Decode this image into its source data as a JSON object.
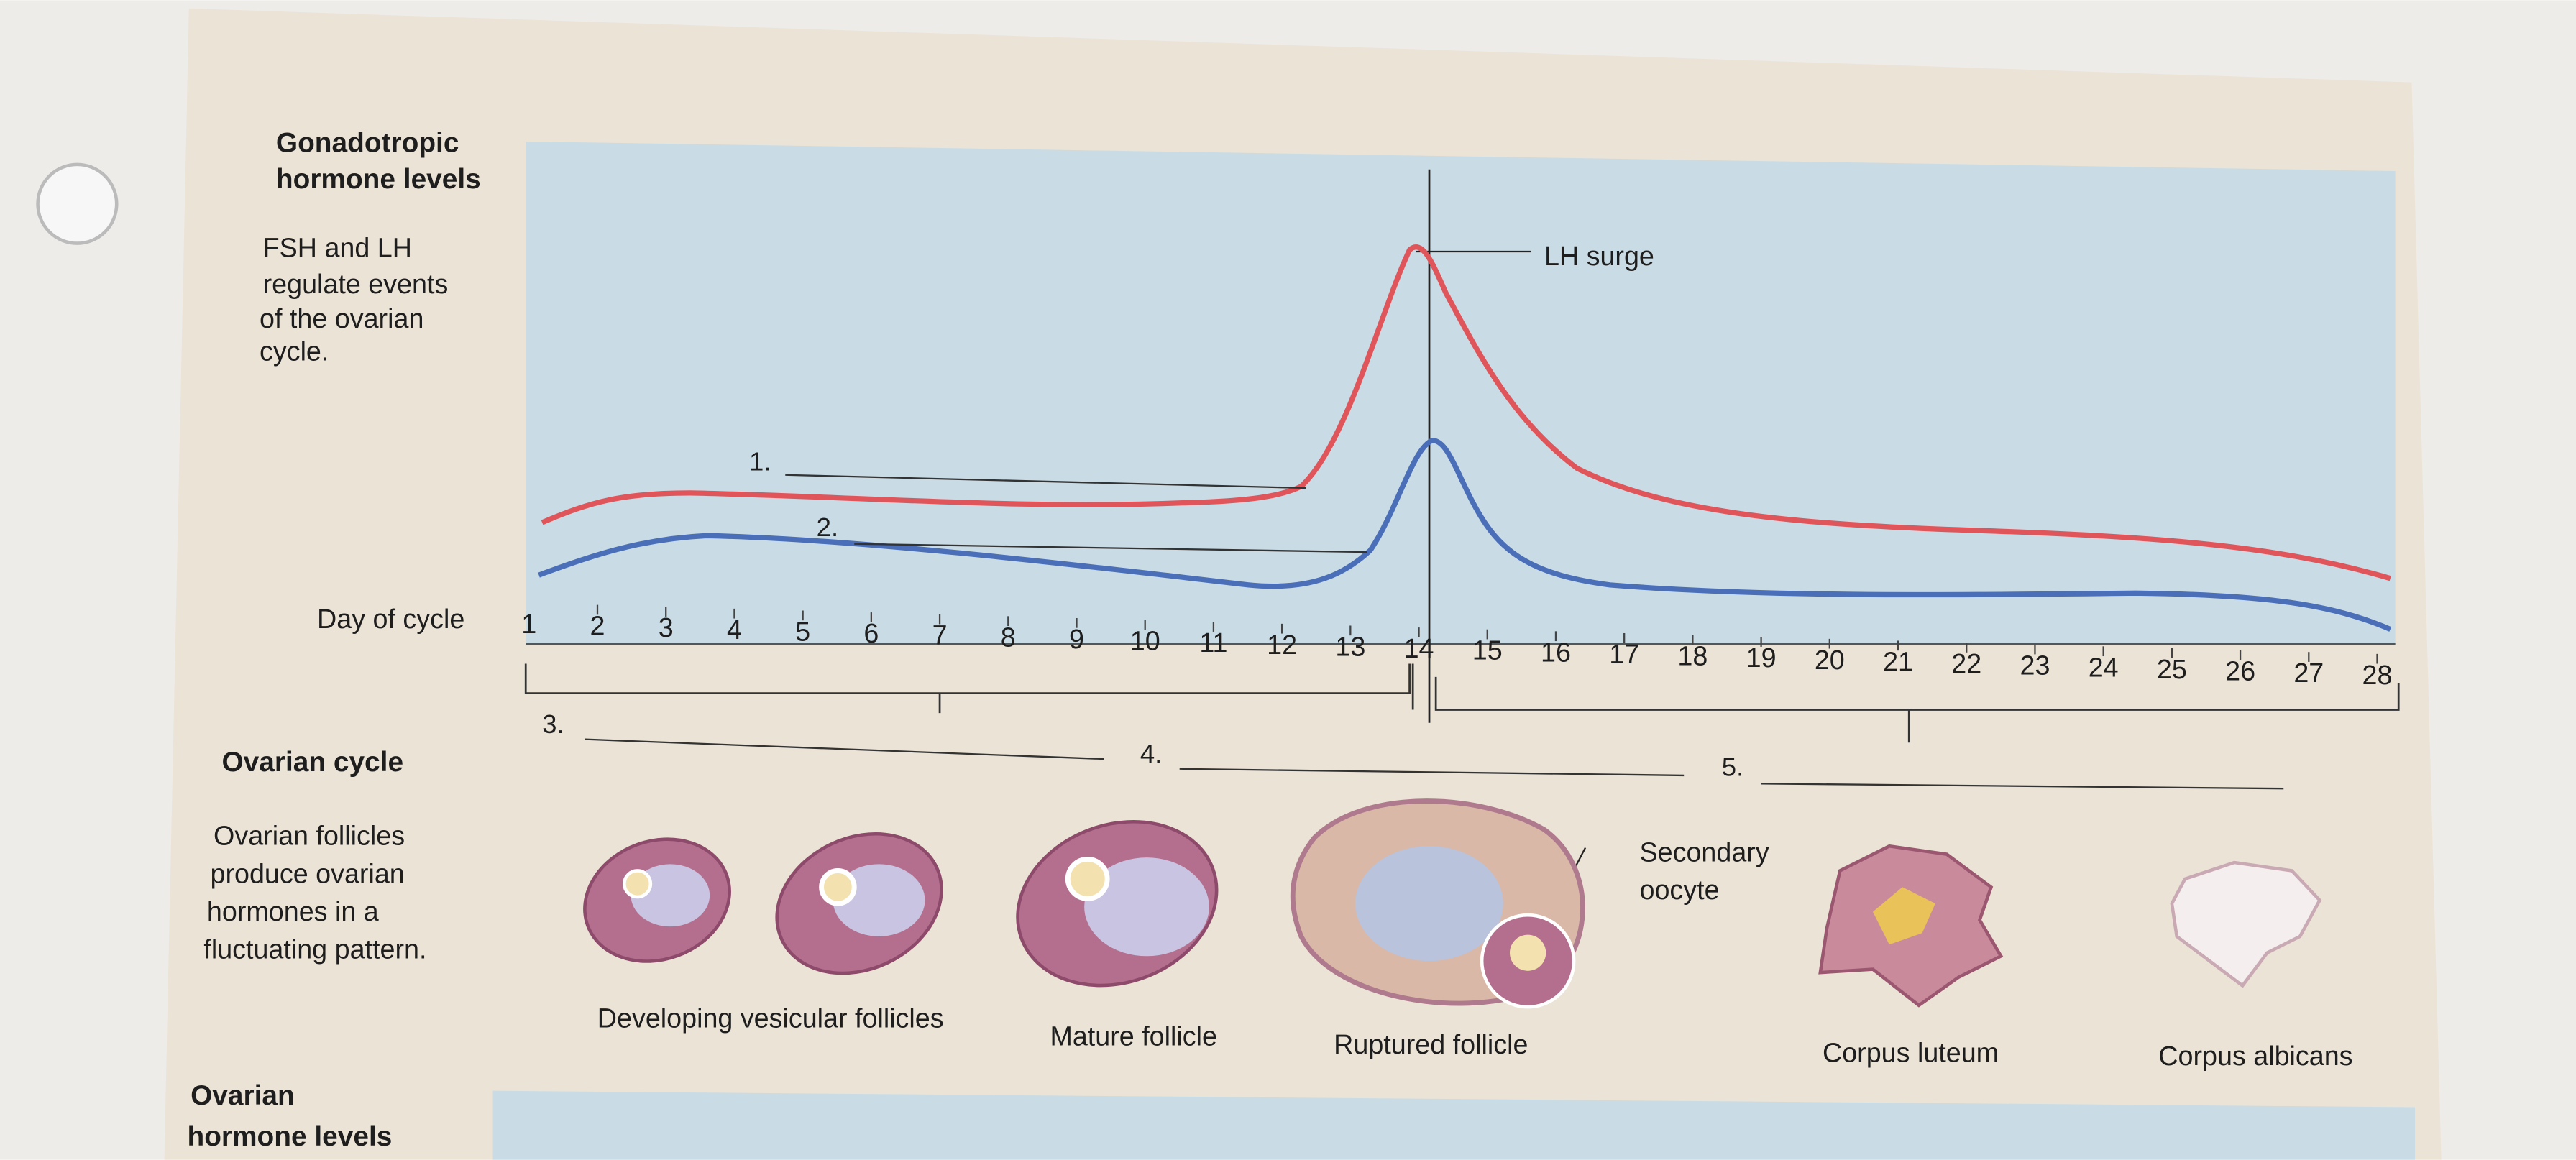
{
  "gonadotropic": {
    "heading": [
      "Gonadotropic",
      "hormone levels"
    ],
    "description": [
      "FSH and LH",
      "regulate events",
      "of the ovarian",
      "cycle."
    ],
    "lh_surge_label": "LH surge",
    "blanks": [
      "1.",
      "2."
    ]
  },
  "day_axis": {
    "label": "Day of cycle",
    "days": [
      1,
      2,
      3,
      4,
      5,
      6,
      7,
      8,
      9,
      10,
      11,
      12,
      13,
      14,
      15,
      16,
      17,
      18,
      19,
      20,
      21,
      22,
      23,
      24,
      25,
      26,
      27,
      28
    ]
  },
  "ovarian_cycle": {
    "heading": "Ovarian cycle",
    "blanks": [
      "3.",
      "4.",
      "5."
    ],
    "description": [
      "Ovarian follicles",
      "produce ovarian",
      "hormones in a",
      "fluctuating pattern."
    ],
    "stages": [
      "Developing vesicular follicles",
      "Mature follicle",
      "Ruptured follicle",
      "Corpus luteum",
      "Corpus albicans"
    ],
    "callout": [
      "Secondary",
      "oocyte"
    ]
  },
  "ovarian_hormones": {
    "heading": [
      "Ovarian",
      "hormone levels"
    ]
  }
}
